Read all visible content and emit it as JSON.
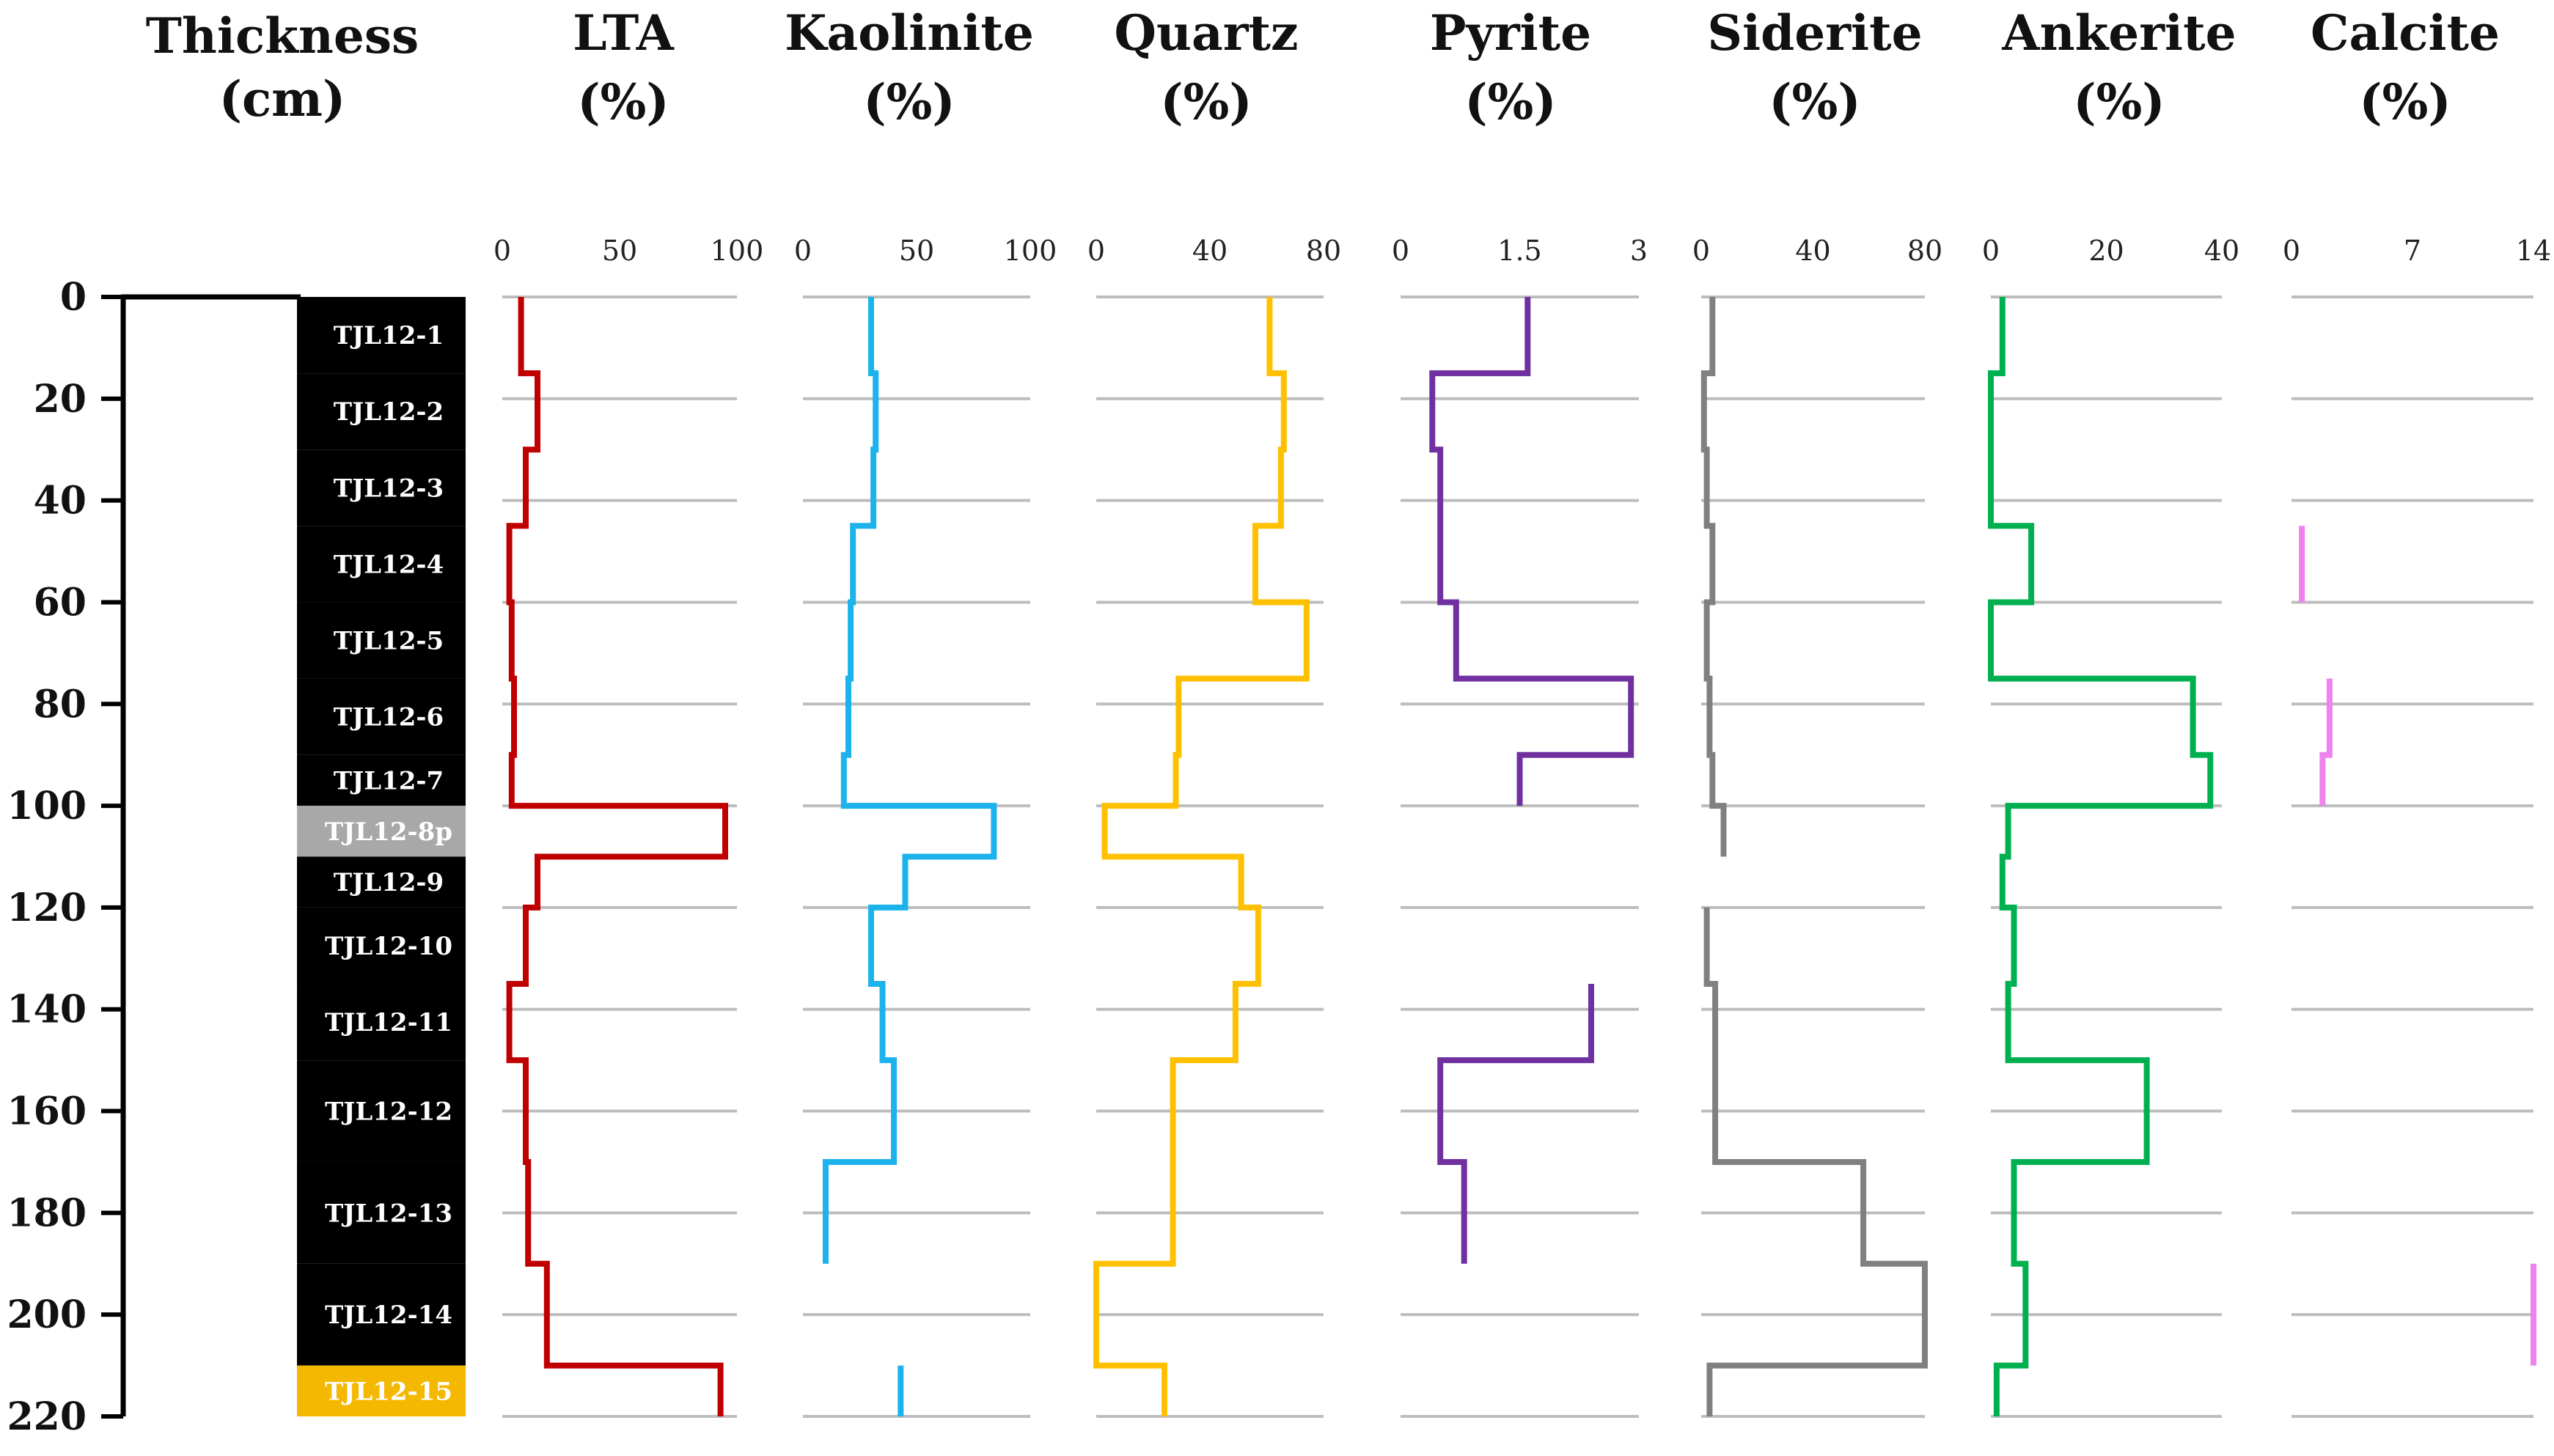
{
  "chart_data": {
    "type": "line",
    "depth_axis": {
      "title_line1": "Thickness",
      "title_line2": "(cm)",
      "ticks": [
        0,
        20,
        40,
        60,
        80,
        100,
        120,
        140,
        160,
        180,
        200,
        220
      ],
      "range": [
        0,
        220
      ],
      "inverted": true
    },
    "samples": [
      {
        "name": "TJL12-1",
        "top": 0,
        "bottom": 15,
        "color": "#000000"
      },
      {
        "name": "TJL12-2",
        "top": 15,
        "bottom": 30,
        "color": "#000000"
      },
      {
        "name": "TJL12-3",
        "top": 30,
        "bottom": 45,
        "color": "#000000"
      },
      {
        "name": "TJL12-4",
        "top": 45,
        "bottom": 60,
        "color": "#000000"
      },
      {
        "name": "TJL12-5",
        "top": 60,
        "bottom": 75,
        "color": "#000000"
      },
      {
        "name": "TJL12-6",
        "top": 75,
        "bottom": 90,
        "color": "#000000"
      },
      {
        "name": "TJL12-7",
        "top": 90,
        "bottom": 100,
        "color": "#000000"
      },
      {
        "name": "TJL12-8p",
        "top": 100,
        "bottom": 110,
        "color": "#a8a8a8"
      },
      {
        "name": "TJL12-9",
        "top": 110,
        "bottom": 120,
        "color": "#000000"
      },
      {
        "name": "TJL12-10",
        "top": 120,
        "bottom": 135,
        "color": "#000000"
      },
      {
        "name": "TJL12-11",
        "top": 135,
        "bottom": 150,
        "color": "#000000"
      },
      {
        "name": "TJL12-12",
        "top": 150,
        "bottom": 170,
        "color": "#000000"
      },
      {
        "name": "TJL12-13",
        "top": 170,
        "bottom": 190,
        "color": "#000000"
      },
      {
        "name": "TJL12-14",
        "top": 190,
        "bottom": 210,
        "color": "#000000"
      },
      {
        "name": "TJL12-15",
        "top": 210,
        "bottom": 220,
        "color": "#f5b800"
      }
    ],
    "tracks": [
      {
        "name": "LTA",
        "unit": "(%)",
        "color": "#c00000",
        "xlim": [
          0,
          100
        ],
        "ticks": [
          "0",
          "50",
          "100"
        ],
        "intervals": [
          [
            0,
            10,
            8
          ],
          [
            10,
            15,
            8
          ],
          [
            15,
            30,
            15
          ],
          [
            30,
            45,
            10
          ],
          [
            45,
            60,
            3
          ],
          [
            60,
            75,
            4
          ],
          [
            75,
            90,
            5
          ],
          [
            90,
            100,
            4
          ],
          [
            100,
            110,
            95
          ],
          [
            110,
            120,
            15
          ],
          [
            120,
            135,
            10
          ],
          [
            135,
            150,
            3
          ],
          [
            150,
            170,
            10
          ],
          [
            170,
            190,
            11
          ],
          [
            190,
            210,
            19
          ],
          [
            210,
            220,
            93
          ]
        ]
      },
      {
        "name": "Kaolinite",
        "unit": "(%)",
        "color": "#1cb2ec",
        "xlim": [
          0,
          100
        ],
        "ticks": [
          "0",
          "50",
          "100"
        ],
        "intervals": [
          [
            0,
            15,
            30
          ],
          [
            15,
            30,
            32
          ],
          [
            30,
            45,
            31
          ],
          [
            45,
            60,
            22
          ],
          [
            60,
            75,
            21
          ],
          [
            75,
            90,
            20
          ],
          [
            90,
            100,
            18
          ],
          [
            100,
            110,
            84
          ],
          [
            110,
            120,
            45
          ],
          [
            120,
            135,
            30
          ],
          [
            135,
            150,
            35
          ],
          [
            150,
            170,
            40
          ],
          [
            170,
            190,
            10
          ],
          [
            210,
            220,
            43
          ]
        ]
      },
      {
        "name": "Quartz",
        "unit": "(%)",
        "color": "#ffc000",
        "xlim": [
          0,
          80
        ],
        "ticks": [
          "0",
          "40",
          "80"
        ],
        "intervals": [
          [
            0,
            15,
            61
          ],
          [
            15,
            30,
            66
          ],
          [
            30,
            45,
            65
          ],
          [
            45,
            60,
            56
          ],
          [
            60,
            75,
            74
          ],
          [
            75,
            90,
            29
          ],
          [
            90,
            100,
            28
          ],
          [
            100,
            110,
            3
          ],
          [
            110,
            120,
            51
          ],
          [
            120,
            135,
            57
          ],
          [
            135,
            150,
            49
          ],
          [
            150,
            170,
            27
          ],
          [
            170,
            190,
            27
          ],
          [
            190,
            210,
            0
          ],
          [
            210,
            220,
            24
          ]
        ]
      },
      {
        "name": "Pyrite",
        "unit": "(%)",
        "color": "#7030a0",
        "xlim": [
          0,
          3
        ],
        "ticks": [
          "0",
          "1.5",
          "3"
        ],
        "intervals": [
          [
            0,
            15,
            1.6
          ],
          [
            15,
            30,
            0.4
          ],
          [
            30,
            45,
            0.5
          ],
          [
            45,
            60,
            0.5
          ],
          [
            60,
            75,
            0.7
          ],
          [
            75,
            90,
            2.9
          ],
          [
            90,
            100,
            1.5
          ],
          [
            135,
            150,
            2.4
          ],
          [
            150,
            170,
            0.5
          ],
          [
            170,
            190,
            0.8
          ]
        ]
      },
      {
        "name": "Siderite",
        "unit": "(%)",
        "color": "#808080",
        "xlim": [
          0,
          80
        ],
        "ticks": [
          "0",
          "40",
          "80"
        ],
        "intervals": [
          [
            0,
            15,
            4
          ],
          [
            15,
            30,
            1
          ],
          [
            30,
            45,
            2
          ],
          [
            45,
            60,
            4
          ],
          [
            60,
            75,
            2
          ],
          [
            75,
            90,
            3
          ],
          [
            90,
            100,
            4
          ],
          [
            100,
            110,
            8
          ],
          [
            120,
            135,
            2
          ],
          [
            135,
            150,
            5
          ],
          [
            150,
            170,
            5
          ],
          [
            170,
            190,
            58
          ],
          [
            190,
            210,
            80
          ],
          [
            210,
            220,
            3
          ]
        ]
      },
      {
        "name": "Ankerite",
        "unit": "(%)",
        "color": "#00b050",
        "xlim": [
          0,
          40
        ],
        "ticks": [
          "0",
          "20",
          "40"
        ],
        "intervals": [
          [
            0,
            15,
            2
          ],
          [
            15,
            30,
            0
          ],
          [
            30,
            45,
            0
          ],
          [
            45,
            60,
            7
          ],
          [
            60,
            75,
            0
          ],
          [
            75,
            90,
            35
          ],
          [
            90,
            100,
            38
          ],
          [
            100,
            110,
            3
          ],
          [
            110,
            120,
            2
          ],
          [
            120,
            135,
            4
          ],
          [
            135,
            150,
            3
          ],
          [
            150,
            170,
            27
          ],
          [
            170,
            190,
            4
          ],
          [
            190,
            210,
            6
          ],
          [
            210,
            220,
            1
          ]
        ]
      },
      {
        "name": "Calcite",
        "unit": "(%)",
        "color": "#ee82ee",
        "xlim": [
          0,
          14
        ],
        "ticks": [
          "0",
          "7",
          "14"
        ],
        "intervals": [
          [
            45,
            60,
            0.6
          ],
          [
            75,
            90,
            2.2
          ],
          [
            90,
            100,
            1.8
          ],
          [
            190,
            210,
            14
          ]
        ]
      }
    ]
  }
}
